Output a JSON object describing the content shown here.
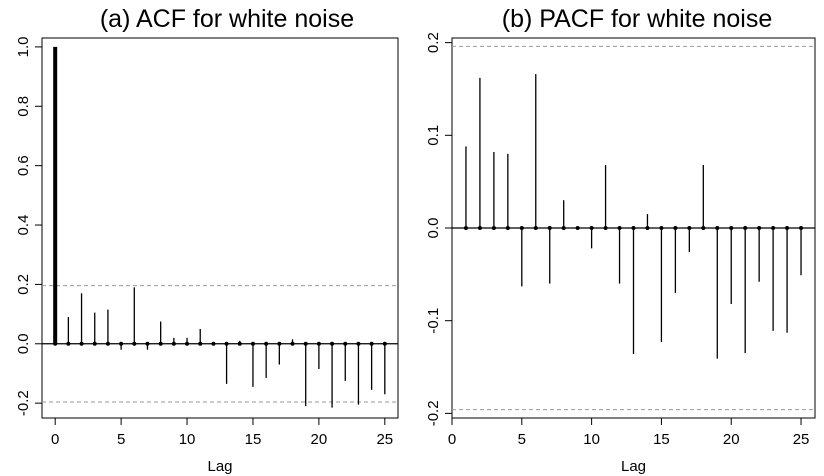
{
  "chart_data": [
    {
      "type": "bar",
      "subtype": "acf-spike",
      "title": "(a) ACF for white noise",
      "xlabel": "Lag",
      "ylabel": "",
      "xlim": [
        -1,
        26
      ],
      "ylim": [
        -0.25,
        1.03
      ],
      "xticks": [
        0,
        5,
        10,
        15,
        20,
        25
      ],
      "yticks": [
        -0.2,
        0.0,
        0.2,
        0.4,
        0.6,
        0.8,
        1.0
      ],
      "ytick_labels": [
        "-0.2",
        "0.0",
        "0.2",
        "0.4",
        "0.6",
        "0.8",
        "1.0"
      ],
      "conf_limit": 0.196,
      "grid": false,
      "x": [
        0,
        1,
        2,
        3,
        4,
        5,
        6,
        7,
        8,
        9,
        10,
        11,
        12,
        13,
        14,
        15,
        16,
        17,
        18,
        19,
        20,
        21,
        22,
        23,
        24,
        25
      ],
      "values": [
        1.0,
        0.09,
        0.17,
        0.105,
        0.115,
        -0.02,
        0.19,
        -0.02,
        0.075,
        0.02,
        0.02,
        0.05,
        0.0,
        -0.135,
        0.01,
        -0.145,
        -0.115,
        -0.07,
        0.015,
        -0.21,
        -0.085,
        -0.215,
        -0.125,
        -0.205,
        -0.155,
        -0.17
      ]
    },
    {
      "type": "bar",
      "subtype": "pacf-spike",
      "title": "(b) PACF for white noise",
      "xlabel": "Lag",
      "ylabel": "",
      "xlim": [
        0,
        26
      ],
      "ylim": [
        -0.205,
        0.205
      ],
      "xticks": [
        0,
        5,
        10,
        15,
        20,
        25
      ],
      "yticks": [
        -0.2,
        -0.1,
        0.0,
        0.1,
        0.2
      ],
      "ytick_labels": [
        "-0.2",
        "-0.1",
        "0.0",
        "0.1",
        "0.2"
      ],
      "conf_limit": 0.196,
      "grid": false,
      "x": [
        1,
        2,
        3,
        4,
        5,
        6,
        7,
        8,
        9,
        10,
        11,
        12,
        13,
        14,
        15,
        16,
        17,
        18,
        19,
        20,
        21,
        22,
        23,
        24,
        25
      ],
      "values": [
        0.088,
        0.162,
        0.082,
        0.08,
        -0.063,
        0.166,
        -0.06,
        0.03,
        0.0,
        -0.022,
        0.068,
        -0.06,
        -0.136,
        0.015,
        -0.123,
        -0.07,
        -0.026,
        0.068,
        -0.141,
        -0.082,
        -0.135,
        -0.058,
        -0.111,
        -0.113,
        -0.051
      ]
    }
  ]
}
